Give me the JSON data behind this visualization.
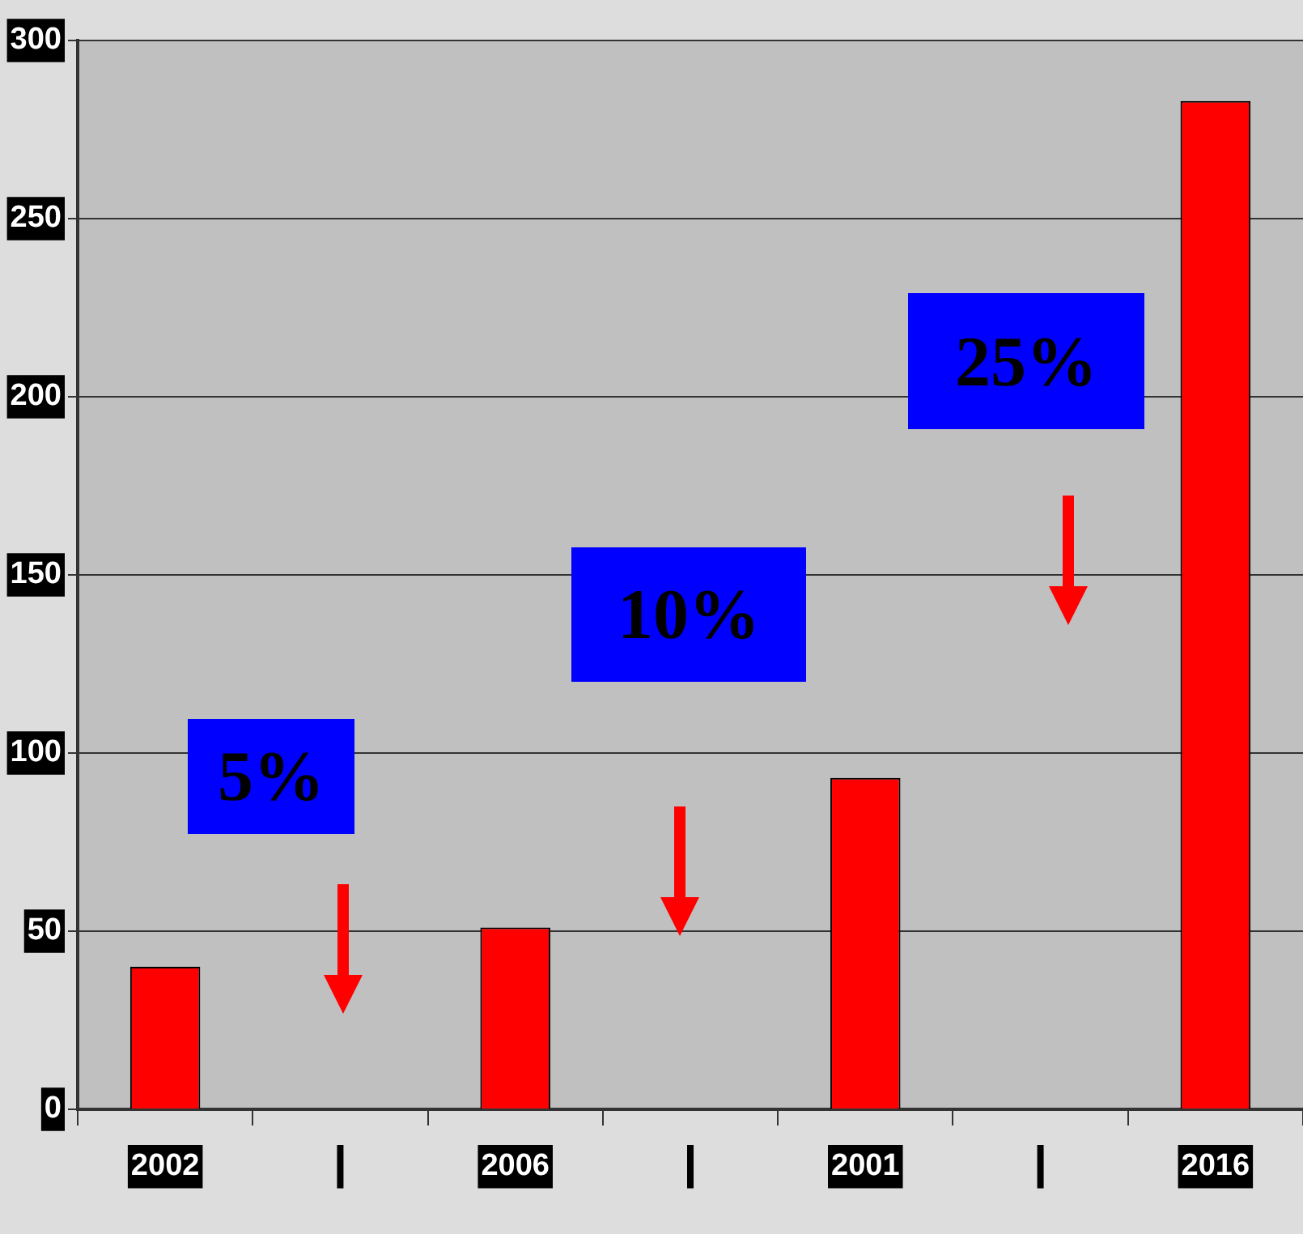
{
  "chart_data": {
    "type": "bar",
    "categories": [
      "2002",
      null,
      "2006",
      null,
      "2001",
      null,
      "2016"
    ],
    "values": [
      40,
      null,
      51,
      null,
      93,
      null,
      283
    ],
    "color": "#ff0000",
    "ylim": [
      0,
      300
    ],
    "yticks": [
      0,
      50,
      100,
      150,
      200,
      250,
      300
    ],
    "grid": "y",
    "annotations": [
      "5%",
      "10%",
      "25%"
    ]
  }
}
